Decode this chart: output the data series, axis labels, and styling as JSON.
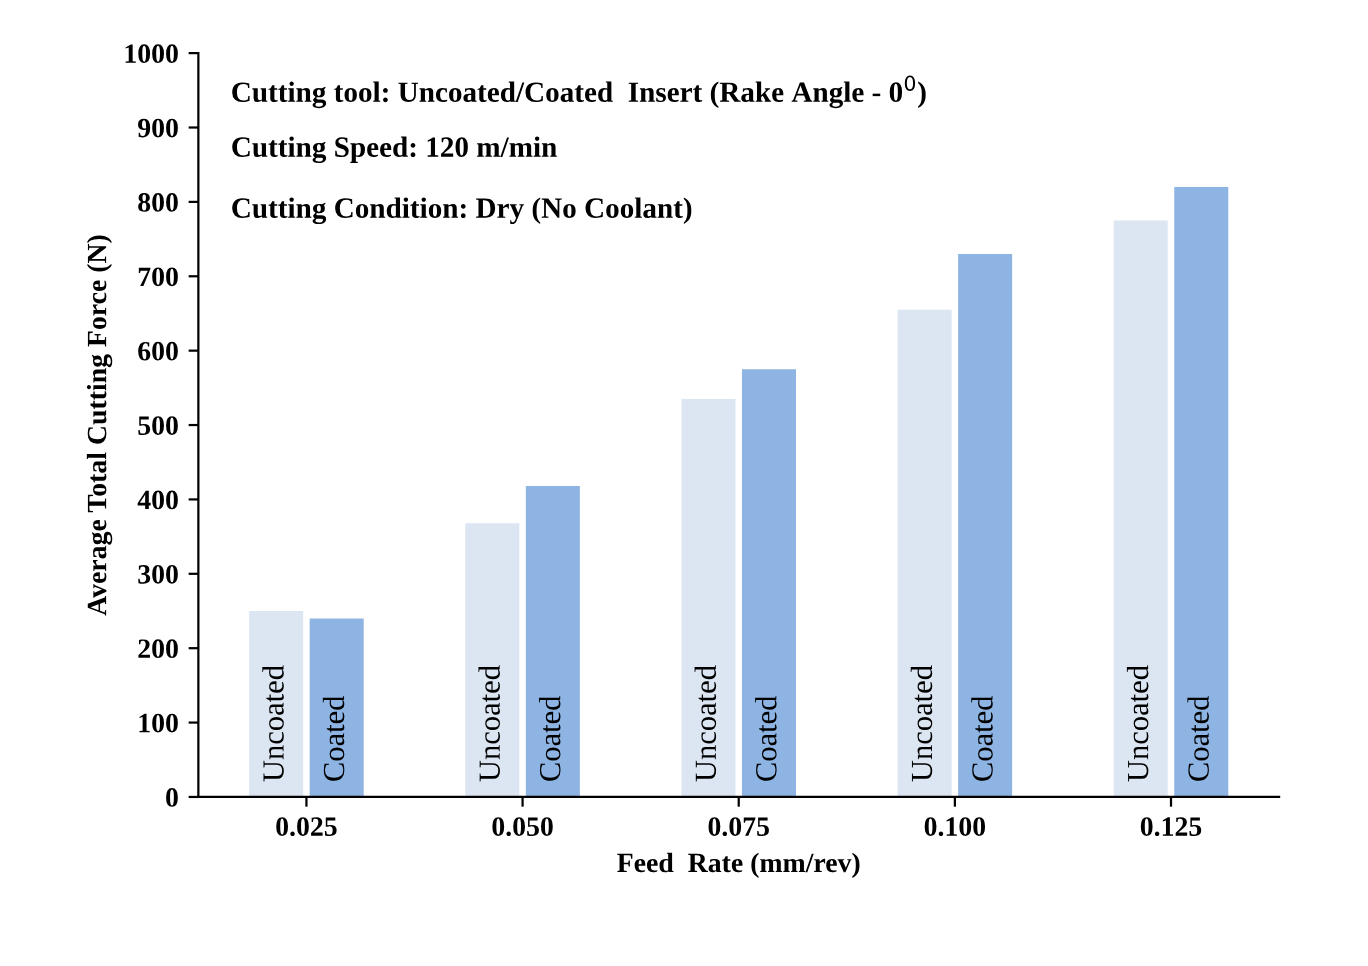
{
  "chart_data": {
    "type": "bar",
    "xlabel": "Feed  Rate (mm/rev)",
    "ylabel": "Average Total Cutting Force (N)",
    "categories": [
      "0.025",
      "0.050",
      "0.075",
      "0.100",
      "0.125"
    ],
    "series": [
      {
        "name": "Uncoated",
        "color": "#dce6f2",
        "values": [
          250,
          368,
          535,
          655,
          775
        ]
      },
      {
        "name": "Coated",
        "color": "#8eb4e3",
        "values": [
          240,
          418,
          575,
          730,
          820
        ]
      }
    ],
    "ylim": [
      0,
      1000
    ],
    "yticks": [
      0,
      100,
      200,
      300,
      400,
      500,
      600,
      700,
      800,
      900,
      1000
    ],
    "grid": false,
    "legend": false,
    "annotations": [
      "Cutting tool: Uncoated/Coated  Insert (Rake Angle - 0$^{0}$)",
      "Cutting Speed: 120 m/min",
      "Cutting Condition: Dry (No Coolant)"
    ]
  }
}
